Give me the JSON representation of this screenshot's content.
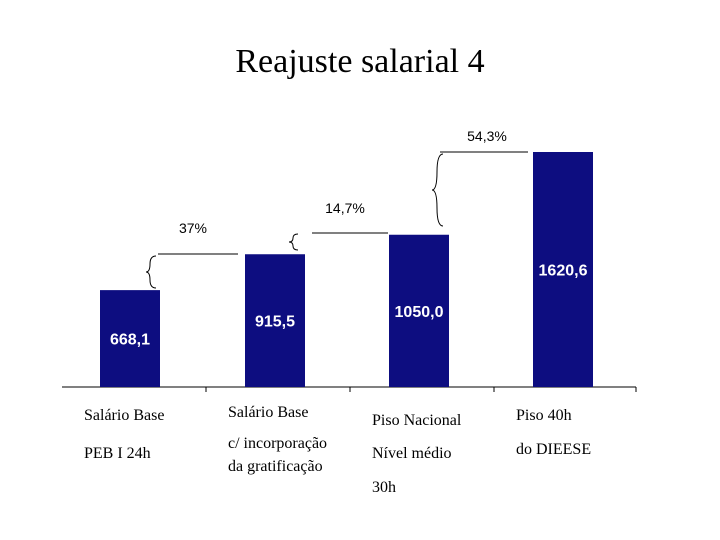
{
  "chart_data": {
    "type": "bar",
    "title": "Reajuste salarial 4",
    "categories": [
      [
        "Salário Base",
        "PEB I 24h"
      ],
      [
        "Salário Base",
        "c/ incorporação",
        "da gratificação"
      ],
      [
        "Piso Nacional",
        "Nível médio",
        "30h"
      ],
      [
        "Piso 40h",
        "do DIEESE"
      ]
    ],
    "values": [
      668.1,
      915.5,
      1050.0,
      1620.6
    ],
    "value_labels": [
      "668,1",
      "915,5",
      "1050,0",
      "1620,6"
    ],
    "color": "#0d0d80",
    "ylim": [
      0,
      1620.6
    ],
    "annotations": [
      "37%",
      "14,7%",
      "54,3%"
    ]
  }
}
